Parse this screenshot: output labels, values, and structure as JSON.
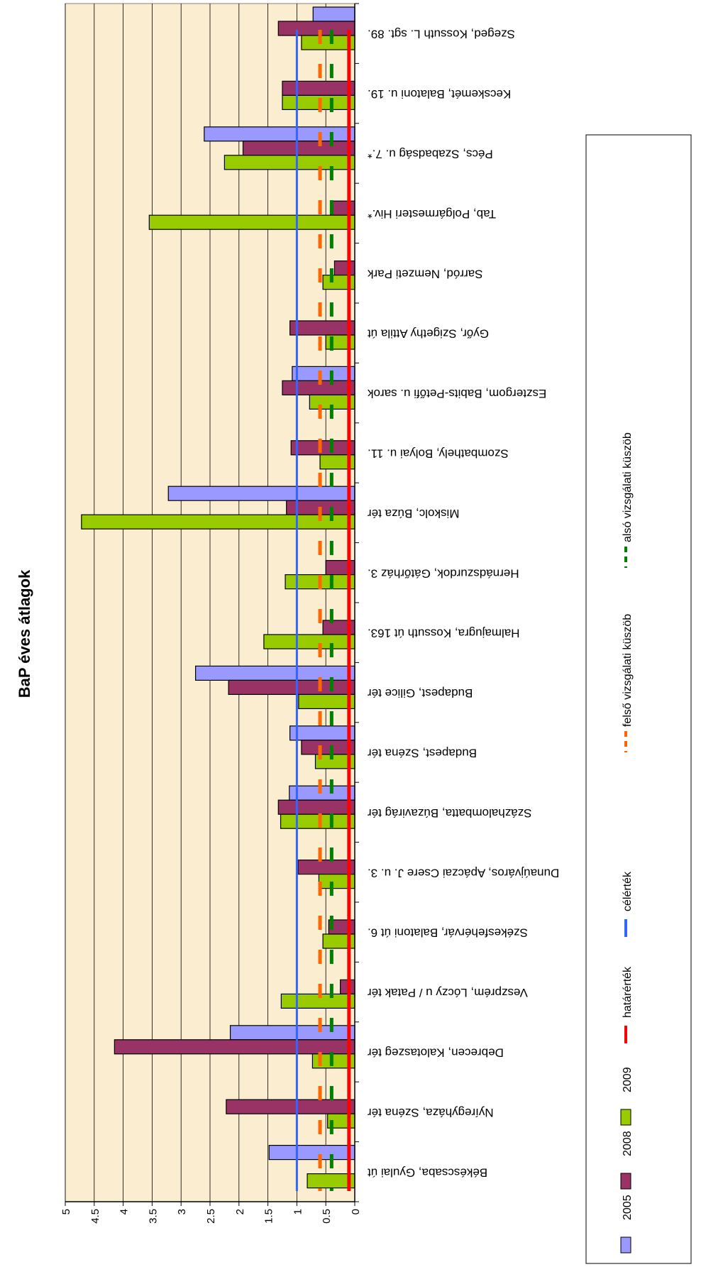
{
  "chart_data": {
    "type": "bar",
    "title": "BaP éves átlagok",
    "ylim": [
      0,
      5
    ],
    "yticks": [
      "0",
      "0.5",
      "1",
      "1.5",
      "2",
      "2.5",
      "3",
      "3.5",
      "4",
      "4.5",
      "5"
    ],
    "grid": true,
    "legend_position": "bottom",
    "categories": [
      "Szeged, Kossuth L. sgt. 89.",
      "Kecskemét, Balatoni u. 19.",
      "Pécs, Szabadság u. 7.*",
      "Tab, Polgármesteri Hiv.*",
      "Sarród, Nemzeti Park",
      "Győr, Szigethy Attila út",
      "Esztergom, Babits-Petőfi u. sarok",
      "Szombathely, Bolyai u. 11.",
      "Miskolc, Búza tér",
      "Hernádszurdok, Gátőrház 3.",
      "Halmajugra, Kossuth út 163.",
      "Budapest, Gilice tér",
      "Budapest, Széna tér",
      "Százhalombatta, Búzavirág tér",
      "Dunaújváros, Apáczai Csere J. u. 3.",
      "Székesfehérvár, Balatoni út 6.",
      "Veszprém, Lóczy u / Patak tér",
      "Debrecen, Kalotaszeg tér",
      "Nyíregyháza, Széna tér",
      "Békéscsaba, Gyulai út"
    ],
    "series": [
      {
        "name": "2005",
        "color": "#9999ff",
        "values": [
          0.72,
          null,
          2.6,
          null,
          null,
          null,
          1.08,
          null,
          3.22,
          null,
          null,
          2.75,
          1.12,
          1.13,
          null,
          null,
          null,
          2.15,
          null,
          1.48
        ]
      },
      {
        "name": "2008",
        "color": "#993366",
        "values": [
          1.32,
          1.25,
          1.93,
          0.42,
          0.35,
          1.12,
          1.25,
          1.1,
          1.18,
          0.5,
          0.55,
          2.18,
          0.92,
          1.32,
          0.98,
          0.45,
          0.25,
          4.15,
          2.22,
          null
        ]
      },
      {
        "name": "2009",
        "color": "#99cc00",
        "values": [
          0.92,
          1.25,
          2.25,
          3.55,
          0.55,
          0.5,
          0.78,
          0.6,
          4.72,
          1.2,
          1.57,
          0.97,
          0.68,
          1.28,
          0.62,
          0.55,
          1.27,
          0.73,
          0.47,
          0.82
        ]
      }
    ],
    "lines": [
      {
        "name": "határérték",
        "value": 0.1,
        "color": "#ff0000",
        "style": "solid"
      },
      {
        "name": "célérték",
        "value": 1,
        "color": "#3366ff",
        "style": "solid"
      },
      {
        "name": "felső vizsgálati küszöb",
        "value": 0.6,
        "color": "#ff6600",
        "style": "dashed"
      },
      {
        "name": "alsó vizsgálati küszöb",
        "value": 0.4,
        "color": "#008000",
        "style": "dashed"
      }
    ]
  }
}
